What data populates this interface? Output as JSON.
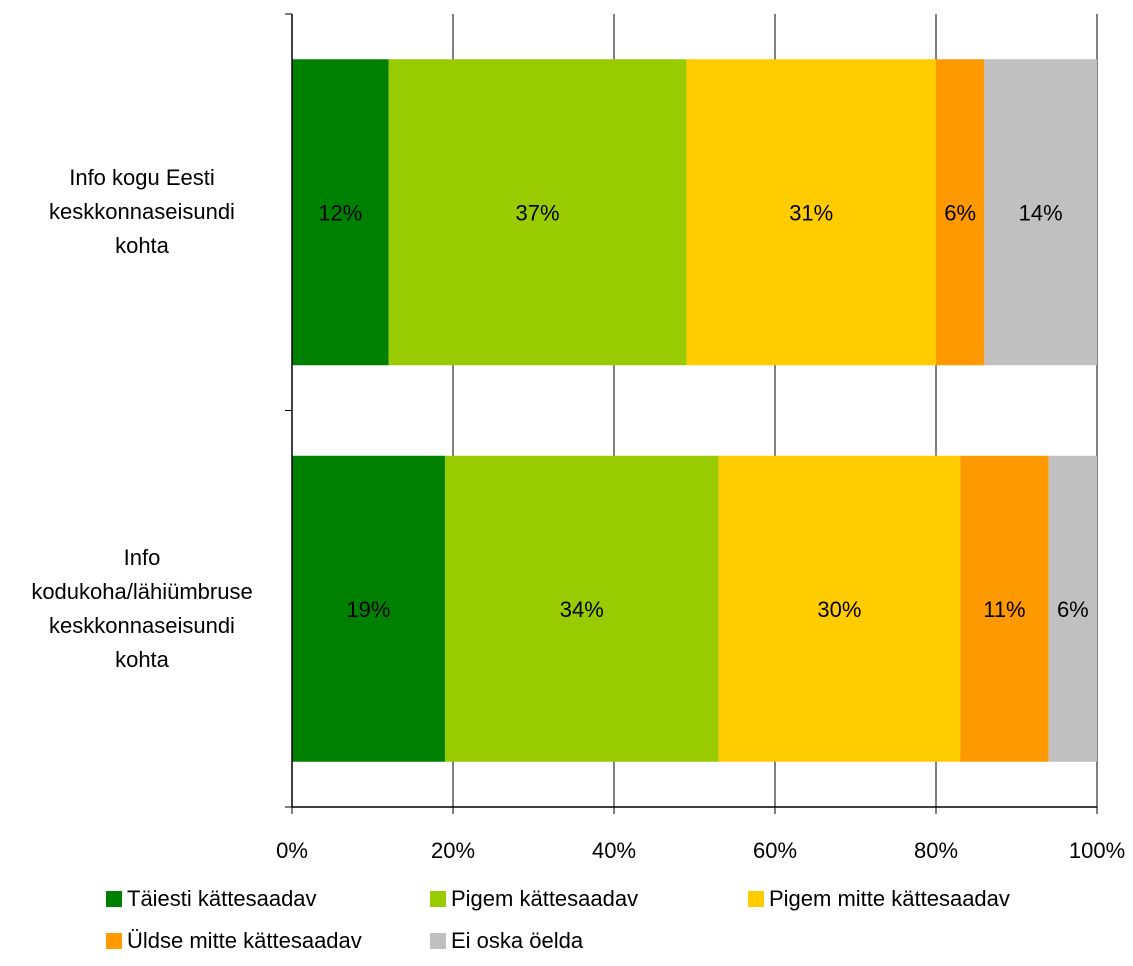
{
  "chart_data": {
    "type": "bar",
    "orientation": "horizontal",
    "stacked": "percent",
    "categories": [
      [
        "Info kogu Eesti",
        "keskkonnaseisundi",
        "kohta"
      ],
      [
        "Info",
        "kodukoha/lähiümbruse",
        "keskkonnaseisundi",
        "kohta"
      ]
    ],
    "series": [
      {
        "name": "Täiesti kättesaadav",
        "color": "#008000",
        "values": [
          12,
          19
        ],
        "labels": [
          "12%",
          "19%"
        ]
      },
      {
        "name": "Pigem kättesaadav",
        "color": "#99CC00",
        "values": [
          37,
          34
        ],
        "labels": [
          "37%",
          "34%"
        ]
      },
      {
        "name": "Pigem mitte kättesaadav",
        "color": "#FFCC00",
        "values": [
          31,
          30
        ],
        "labels": [
          "31%",
          "30%"
        ]
      },
      {
        "name": "Üldse mitte kättesaadav",
        "color": "#FF9900",
        "values": [
          6,
          11
        ],
        "labels": [
          "6%",
          "11%"
        ]
      },
      {
        "name": "Ei oska öelda",
        "color": "#C0C0C0",
        "values": [
          14,
          6
        ],
        "labels": [
          "14%",
          "6%"
        ]
      }
    ],
    "xlim": [
      0,
      100
    ],
    "xticks": [
      "0%",
      "20%",
      "40%",
      "60%",
      "80%",
      "100%"
    ],
    "grid": true,
    "legend": "bottom"
  }
}
